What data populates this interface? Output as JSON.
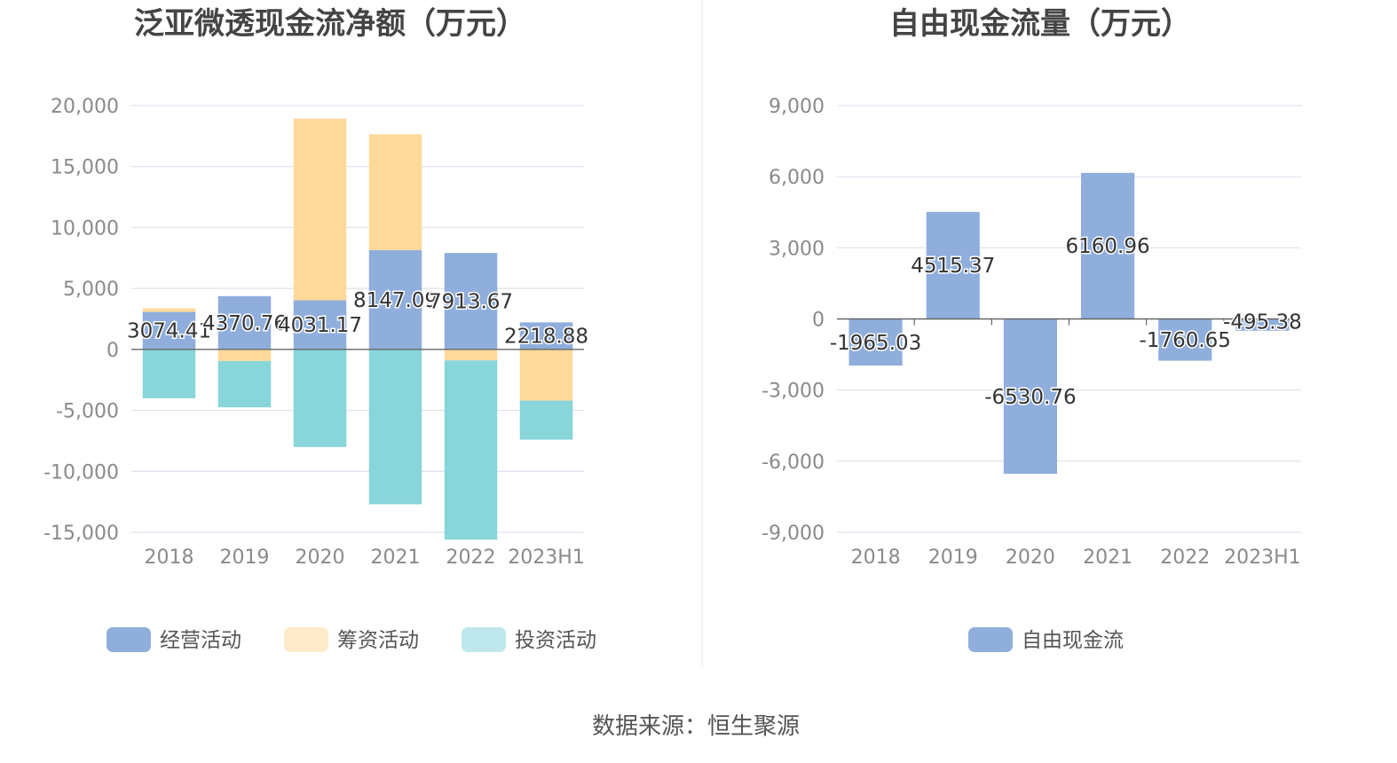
{
  "colors": {
    "operating": "#8FAEDC",
    "financing": "#FDD99A",
    "investing": "#88D5DA",
    "free": "#8FAEDC",
    "grid": "#DCE3EE",
    "axis": "#666666"
  },
  "source_text": "数据来源：恒生聚源",
  "chart_data": [
    {
      "type": "bar",
      "stacked": true,
      "title": "泛亚微透现金流净额（万元）",
      "categories": [
        "2018",
        "2019",
        "2020",
        "2021",
        "2022",
        "2023H1"
      ],
      "ylim": [
        -15000,
        20000
      ],
      "yticks": [
        20000,
        15000,
        10000,
        5000,
        0,
        -5000,
        -10000,
        -15000
      ],
      "ytick_labels": [
        "20,000",
        "15,000",
        "10,000",
        "5,000",
        "0",
        "-5,000",
        "-10,000",
        "-15,000"
      ],
      "grid": true,
      "legend_position": "bottom",
      "series": [
        {
          "name": "经营活动",
          "color_key": "operating",
          "values": [
            3074.41,
            4370.76,
            4031.17,
            8147.09,
            7913.67,
            2218.88
          ],
          "labels": [
            "3074.41",
            "4370.76",
            "4031.17",
            "8147.09",
            "7913.67",
            "2218.88"
          ]
        },
        {
          "name": "筹资活动",
          "color_key": "financing",
          "values": [
            300,
            -950,
            14900,
            9500,
            -900,
            -4200
          ]
        },
        {
          "name": "投资活动",
          "color_key": "investing",
          "values": [
            -4000,
            -3800,
            -8000,
            -12700,
            -14700,
            -3200
          ]
        }
      ]
    },
    {
      "type": "bar",
      "title": "自由现金流量（万元）",
      "categories": [
        "2018",
        "2019",
        "2020",
        "2021",
        "2022",
        "2023H1"
      ],
      "ylim": [
        -9000,
        9000
      ],
      "yticks": [
        9000,
        6000,
        3000,
        0,
        -3000,
        -6000,
        -9000
      ],
      "ytick_labels": [
        "9,000",
        "6,000",
        "3,000",
        "0",
        "-3,000",
        "-6,000",
        "-9,000"
      ],
      "grid": true,
      "legend_position": "bottom",
      "series": [
        {
          "name": "自由现金流",
          "color_key": "free",
          "values": [
            -1965.03,
            4515.37,
            -6530.76,
            6160.96,
            -1760.65,
            -495.38
          ],
          "labels": [
            "-1965.03",
            "4515.37",
            "-6530.76",
            "6160.96",
            "-1760.65",
            "-495.38"
          ]
        }
      ]
    }
  ]
}
